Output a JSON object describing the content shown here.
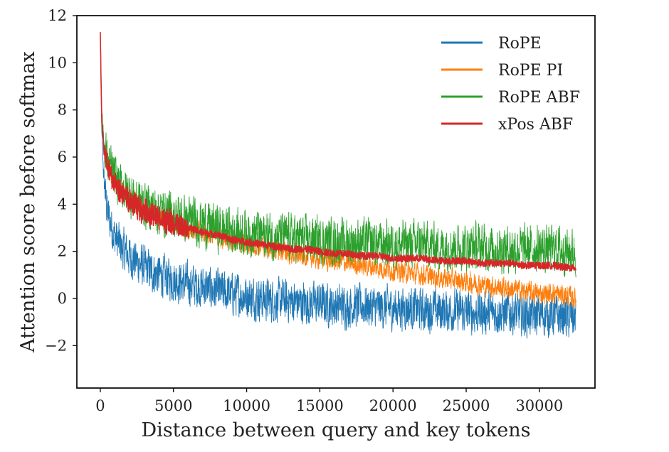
{
  "chart_data": {
    "type": "line",
    "title": "",
    "xlabel": "Distance between query and key tokens",
    "ylabel": "Attention score before softmax",
    "xlim": [
      -1600,
      33800
    ],
    "ylim": [
      -3.8,
      12
    ],
    "xticks": [
      0,
      5000,
      10000,
      15000,
      20000,
      25000,
      30000
    ],
    "xtick_labels": [
      "0",
      "5000",
      "10000",
      "15000",
      "20000",
      "25000",
      "30000"
    ],
    "yticks": [
      -2,
      0,
      2,
      4,
      6,
      8,
      10,
      12
    ],
    "ytick_labels": [
      "−2",
      "0",
      "2",
      "4",
      "6",
      "8",
      "10",
      "12"
    ],
    "grid": false,
    "legend_position": "top-right",
    "x": [
      0,
      100,
      250,
      500,
      1000,
      1500,
      2000,
      3000,
      4000,
      5000,
      6000,
      7000,
      8000,
      9000,
      10000,
      11000,
      12000,
      13000,
      14000,
      15000,
      16000,
      17000,
      18000,
      19000,
      20000,
      21000,
      22000,
      23000,
      24000,
      25000,
      26000,
      27000,
      28000,
      29000,
      30000,
      31000,
      32000,
      32500
    ],
    "series": [
      {
        "name": "RoPE",
        "color": "#1f77b4",
        "values": [
          11.3,
          7.0,
          5.0,
          3.6,
          2.6,
          2.1,
          1.8,
          1.3,
          1.0,
          0.8,
          0.6,
          0.5,
          0.3,
          0.2,
          0.1,
          0.0,
          -0.1,
          -0.1,
          -0.2,
          -0.2,
          -0.3,
          -0.3,
          -0.3,
          -0.4,
          -0.4,
          -0.4,
          -0.5,
          -0.5,
          -0.5,
          -0.6,
          -0.6,
          -0.6,
          -0.6,
          -0.7,
          -0.7,
          -0.7,
          -0.8,
          -0.8
        ],
        "noise": 1.2
      },
      {
        "name": "RoPE PI",
        "color": "#ff7f0e",
        "values": [
          11.3,
          7.8,
          6.3,
          5.6,
          4.9,
          4.5,
          4.2,
          3.7,
          3.4,
          3.2,
          3.0,
          2.8,
          2.6,
          2.5,
          2.3,
          2.2,
          2.1,
          1.9,
          1.8,
          1.7,
          1.6,
          1.5,
          1.4,
          1.3,
          1.2,
          1.1,
          1.0,
          0.9,
          0.8,
          0.7,
          0.6,
          0.5,
          0.4,
          0.3,
          0.2,
          0.2,
          0.1,
          0.0
        ],
        "noise": 0.6
      },
      {
        "name": "RoPE ABF",
        "color": "#2ca02c",
        "values": [
          11.3,
          8.0,
          6.5,
          5.8,
          5.1,
          4.7,
          4.4,
          4.0,
          3.7,
          3.5,
          3.3,
          3.2,
          3.0,
          2.9,
          2.8,
          2.7,
          2.6,
          2.6,
          2.5,
          2.5,
          2.4,
          2.4,
          2.4,
          2.3,
          2.3,
          2.3,
          2.3,
          2.2,
          2.2,
          2.2,
          2.2,
          2.1,
          2.1,
          2.1,
          2.1,
          2.1,
          2.0,
          2.0
        ],
        "noise": 1.3
      },
      {
        "name": "xPos ABF",
        "color": "#d62728",
        "values": [
          11.3,
          7.5,
          6.3,
          5.6,
          4.8,
          4.4,
          4.1,
          3.7,
          3.4,
          3.2,
          3.0,
          2.8,
          2.7,
          2.5,
          2.4,
          2.3,
          2.2,
          2.1,
          2.1,
          2.0,
          1.9,
          1.9,
          1.8,
          1.8,
          1.7,
          1.7,
          1.7,
          1.6,
          1.6,
          1.6,
          1.5,
          1.5,
          1.5,
          1.4,
          1.4,
          1.4,
          1.3,
          1.3
        ],
        "noise": 0.15
      }
    ]
  }
}
